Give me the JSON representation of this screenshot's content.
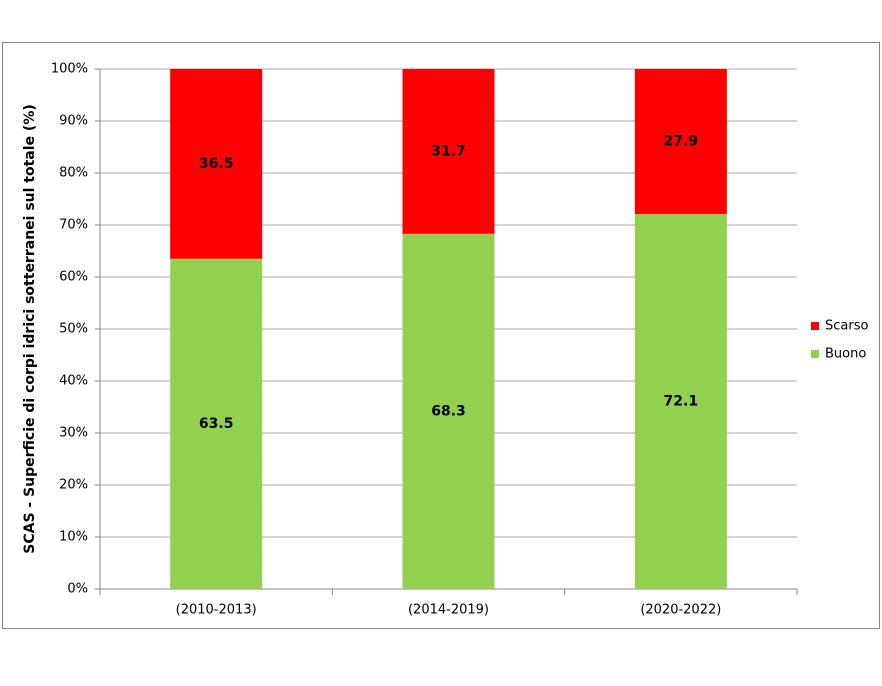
{
  "chart_data": {
    "type": "stacked-bar",
    "y_label": "SCAS - Superficie di corpi idrici sotterranei sul totale (%)",
    "categories": [
      "(2010-2013)",
      "(2014-2019)",
      "(2020-2022)"
    ],
    "series": [
      {
        "name": "Buono",
        "color": "#92d050",
        "values": [
          63.5,
          68.3,
          72.1
        ]
      },
      {
        "name": "Scarso",
        "color": "#ff0000",
        "values": [
          36.5,
          31.7,
          27.9
        ]
      }
    ],
    "ylim": [
      0,
      100
    ],
    "yticks": [
      {
        "value": 0,
        "label": "0%"
      },
      {
        "value": 10,
        "label": "10%"
      },
      {
        "value": 20,
        "label": "20%"
      },
      {
        "value": 30,
        "label": "30%"
      },
      {
        "value": 40,
        "label": "40%"
      },
      {
        "value": 50,
        "label": "50%"
      },
      {
        "value": 60,
        "label": "60%"
      },
      {
        "value": 70,
        "label": "70%"
      },
      {
        "value": 80,
        "label": "80%"
      },
      {
        "value": 90,
        "label": "90%"
      },
      {
        "value": 100,
        "label": "100%"
      }
    ],
    "grid": true,
    "legend": "right"
  }
}
